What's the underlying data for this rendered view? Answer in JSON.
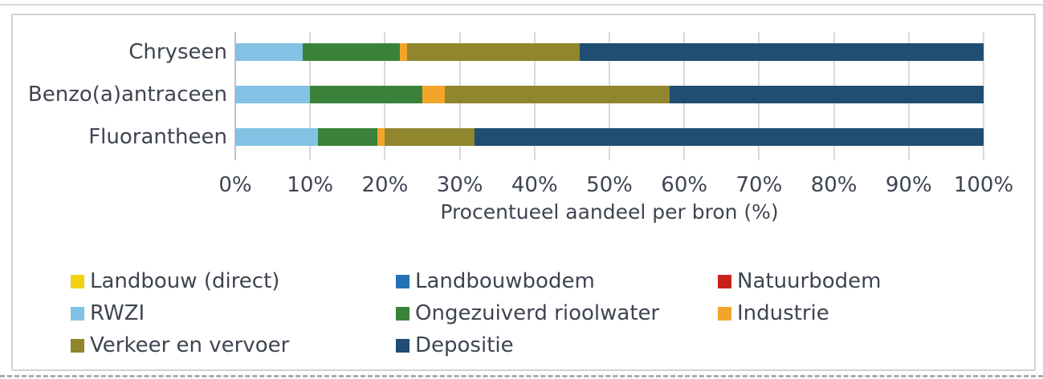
{
  "chart_data": {
    "type": "bar",
    "orientation": "horizontal",
    "stacked": true,
    "title": "",
    "xlabel": "Procentueel aandeel per bron (%)",
    "ylabel": "",
    "xlim": [
      0,
      100
    ],
    "grid": true,
    "x_ticks": [
      "0%",
      "10%",
      "20%",
      "30%",
      "40%",
      "50%",
      "60%",
      "70%",
      "80%",
      "90%",
      "100%"
    ],
    "categories": [
      "Chryseen",
      "Benzo(a)antraceen",
      "Fluorantheen"
    ],
    "series": [
      {
        "name": "Landbouw (direct)",
        "color": "#f2d113",
        "values": [
          0,
          0,
          0
        ]
      },
      {
        "name": "Landbouwbodem",
        "color": "#2272b5",
        "values": [
          0,
          0,
          0
        ]
      },
      {
        "name": "Natuurbodem",
        "color": "#c9221b",
        "values": [
          0,
          0,
          0
        ]
      },
      {
        "name": "RWZI",
        "color": "#82c2e4",
        "values": [
          9,
          10,
          11
        ]
      },
      {
        "name": "Ongezuiverd rioolwater",
        "color": "#3a8239",
        "values": [
          13,
          15,
          8
        ]
      },
      {
        "name": "Industrie",
        "color": "#f3a52b",
        "values": [
          1,
          3,
          1
        ]
      },
      {
        "name": "Verkeer en vervoer",
        "color": "#8f862d",
        "values": [
          23,
          30,
          12
        ]
      },
      {
        "name": "Depositie",
        "color": "#1f4d73",
        "values": [
          54,
          42,
          68
        ]
      }
    ],
    "legend_position": "bottom",
    "legend_rows": [
      [
        0,
        1,
        2
      ],
      [
        3,
        4,
        5
      ],
      [
        6,
        7
      ]
    ]
  },
  "colors": {
    "gridline": "#d9d9d9",
    "axis_line": "#c3c3c3",
    "text": "#3e4450",
    "frame_border": "#d2d2d2",
    "background": "#ffffff"
  }
}
